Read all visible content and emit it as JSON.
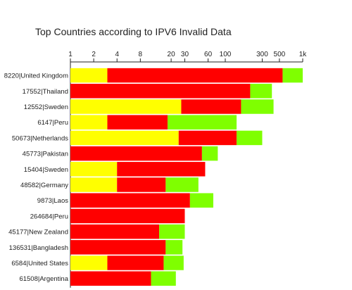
{
  "chart_data": {
    "type": "bar",
    "orientation": "horizontal",
    "stacked": true,
    "title": "Top Countries according to IPV6 Invalid Data",
    "x_axis": {
      "scale": "log",
      "position": "top",
      "range": [
        1,
        1000
      ],
      "tick_values": [
        1,
        2,
        4,
        8,
        20,
        30,
        60,
        100,
        300,
        500,
        1000
      ],
      "tick_labels": [
        "1",
        "2",
        "4",
        "8",
        "20",
        "30",
        "60",
        "100",
        "300",
        "500",
        "1k"
      ]
    },
    "grid": false,
    "legend": "none",
    "categories": [
      "8220|United Kingdom",
      "17552|Thailand",
      "12552|Sweden",
      "6147|Peru",
      "50673|Netherlands",
      "45773|Pakistan",
      "15404|Sweden",
      "48582|Germany",
      "9873|Laos",
      "264684|Peru",
      "45177|New Zealand",
      "136531|Bangladesh",
      "6584|United States",
      "61508|Argentina"
    ],
    "segments": [
      {
        "color": "#ffff00",
        "ends": [
          3,
          1,
          27,
          3,
          25,
          1,
          4,
          4,
          1,
          1,
          1,
          1,
          3,
          1
        ]
      },
      {
        "color": "#ff0000",
        "ends": [
          550,
          210,
          160,
          18,
          140,
          50,
          55,
          17,
          35,
          30,
          14,
          17,
          16,
          11
        ]
      },
      {
        "color": "#7fff00",
        "ends": [
          1000,
          400,
          420,
          140,
          300,
          80,
          55,
          45,
          70,
          30,
          30,
          28,
          29,
          23
        ]
      }
    ]
  }
}
